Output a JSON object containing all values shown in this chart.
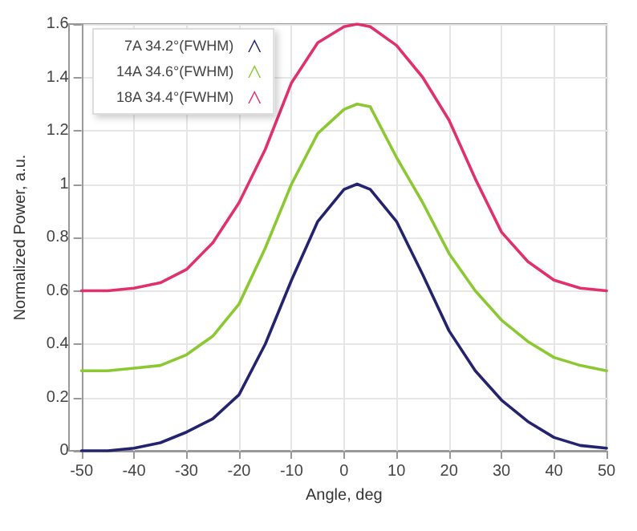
{
  "chart_data": {
    "type": "line",
    "xlabel": "Angle, deg",
    "ylabel": "Normalized Power, a.u.",
    "x": [
      -50,
      -45,
      -40,
      -35,
      -30,
      -25,
      -20,
      -15,
      -10,
      -5,
      0,
      2.5,
      5,
      10,
      15,
      20,
      25,
      30,
      35,
      40,
      45,
      50
    ],
    "series": [
      {
        "name": "7A 34.2°(FWHM)",
        "color": "#23236e",
        "values": [
          0,
          0,
          0.01,
          0.03,
          0.07,
          0.12,
          0.21,
          0.4,
          0.64,
          0.86,
          0.98,
          1.0,
          0.98,
          0.86,
          0.66,
          0.45,
          0.3,
          0.19,
          0.11,
          0.05,
          0.02,
          0.01
        ]
      },
      {
        "name": "14A 34.6°(FWHM)",
        "color": "#8cc832",
        "values": [
          0.3,
          0.3,
          0.31,
          0.32,
          0.36,
          0.43,
          0.55,
          0.76,
          1.0,
          1.19,
          1.28,
          1.3,
          1.29,
          1.1,
          0.93,
          0.74,
          0.6,
          0.49,
          0.41,
          0.35,
          0.32,
          0.3
        ]
      },
      {
        "name": "18A 34.4°(FWHM)",
        "color": "#e0306e",
        "values": [
          0.6,
          0.6,
          0.61,
          0.63,
          0.68,
          0.78,
          0.93,
          1.13,
          1.38,
          1.53,
          1.59,
          1.6,
          1.59,
          1.52,
          1.4,
          1.24,
          1.02,
          0.82,
          0.71,
          0.64,
          0.61,
          0.6
        ]
      }
    ],
    "xlim": [
      -50,
      50
    ],
    "xticks": [
      -50,
      -40,
      -30,
      -20,
      -10,
      0,
      10,
      20,
      30,
      40,
      50
    ],
    "ylim": [
      0,
      1.6
    ],
    "yticks": [
      0,
      0.2,
      0.4,
      0.6,
      0.8,
      1,
      1.2,
      1.4,
      1.6
    ],
    "grid": true,
    "legend": "top left",
    "marker": "none",
    "line_style": "solid"
  }
}
